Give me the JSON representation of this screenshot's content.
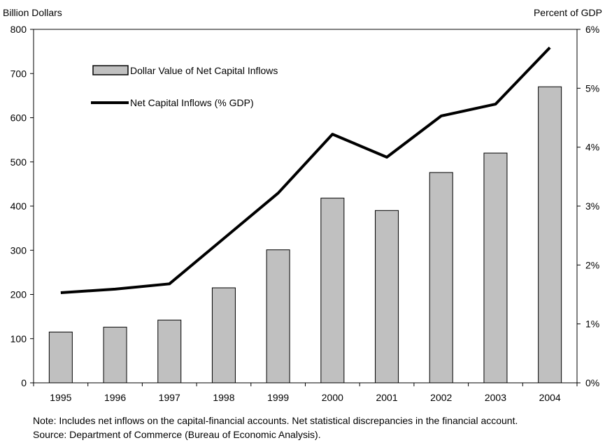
{
  "chart_data": {
    "type": "bar",
    "categories": [
      "1995",
      "1996",
      "1997",
      "1998",
      "1999",
      "2000",
      "2001",
      "2002",
      "2003",
      "2004"
    ],
    "left_axis": {
      "label": "Billion Dollars",
      "ylim": [
        0,
        800
      ],
      "ticks": [
        "0",
        "100",
        "200",
        "300",
        "400",
        "500",
        "600",
        "700",
        "800"
      ]
    },
    "right_axis": {
      "label": "Percent of GDP",
      "ylim": [
        0,
        6
      ],
      "ticks": [
        "0%",
        "1%",
        "2%",
        "3%",
        "4%",
        "5%",
        "6%"
      ]
    },
    "series": [
      {
        "name": "Dollar Value of Net Capital Inflows",
        "type": "bar",
        "axis": "left",
        "color": "#c0c0c0",
        "values": [
          115,
          126,
          142,
          215,
          301,
          418,
          390,
          476,
          520,
          670
        ]
      },
      {
        "name": "Net Capital Inflows (% GDP)",
        "type": "line",
        "axis": "right",
        "color": "#000000",
        "values": [
          1.53,
          1.59,
          1.68,
          2.45,
          3.22,
          4.22,
          3.83,
          4.53,
          4.73,
          5.69
        ]
      }
    ],
    "legend_placement": "top-left",
    "grid": false
  },
  "notes": {
    "note": "Note: Includes net inflows on the capital-financial accounts. Net statistical discrepancies in the financial account.",
    "source": "Source: Department of Commerce (Bureau of Economic Analysis)."
  }
}
